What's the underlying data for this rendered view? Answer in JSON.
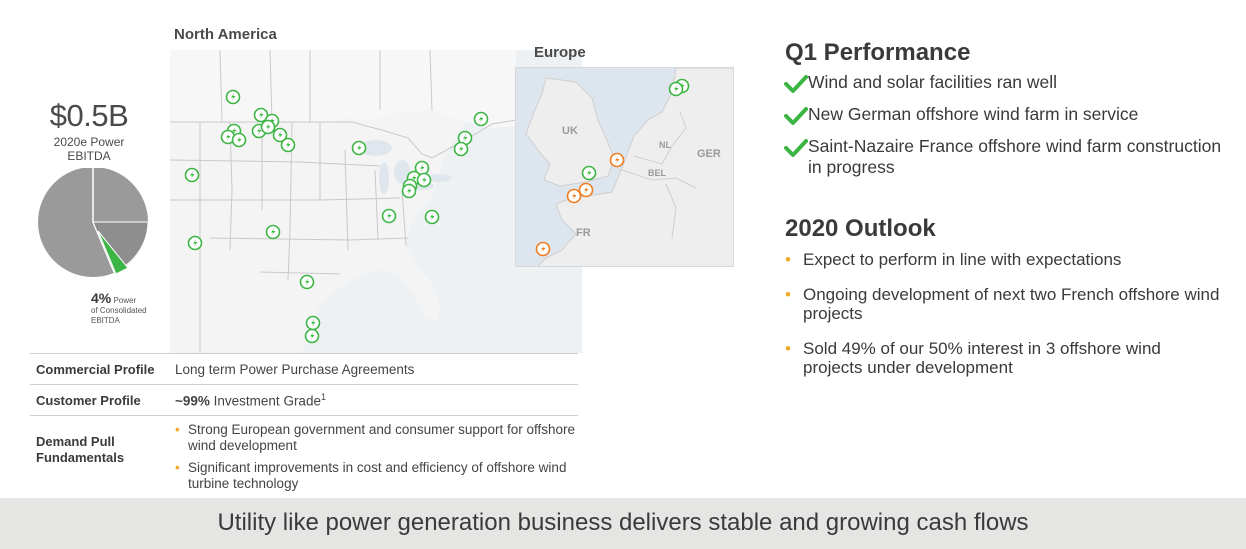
{
  "metric": {
    "value": "$0.5B",
    "caption": "2020e Power EBITDA",
    "pie_percent": "4%",
    "pie_note_text": "Power of Consolidated EBITDA",
    "pie_share": 0.04
  },
  "maps": {
    "north_america_title": "North America",
    "europe_title": "Europe",
    "europe_labels": [
      "UK",
      "NL",
      "GER",
      "BEL",
      "FR"
    ],
    "icon_colors": {
      "green": "#3db544",
      "orange": "#ef7d22"
    }
  },
  "profile_table": {
    "rows": [
      {
        "label": "Commercial Profile",
        "value": "Long term Power Purchase Agreements"
      },
      {
        "label": "Customer Profile",
        "value_bold": "~99%",
        "value_rest": " Investment Grade",
        "footnote": "1"
      },
      {
        "label": "Demand Pull Fundamentals",
        "bullets": [
          "Strong European government and consumer support for offshore wind development",
          "Significant improvements in cost and efficiency of offshore wind turbine technology"
        ]
      }
    ]
  },
  "q1": {
    "title": "Q1 Performance",
    "items": [
      "Wind and solar facilities ran well",
      "New German offshore wind farm in service",
      "Saint-Nazaire France offshore wind farm construction in progress"
    ]
  },
  "outlook": {
    "title": "2020 Outlook",
    "items": [
      "Expect to perform in line with expectations",
      "Ongoing development of next two French offshore wind projects",
      "Sold 49% of our 50% interest in 3 offshore wind projects under development"
    ]
  },
  "banner": "Utility like power generation business delivers stable and growing cash flows",
  "colors": {
    "accent_green": "#3db544",
    "bullet_orange": "#f0a928",
    "pie_gray": "#9a9a9a"
  }
}
